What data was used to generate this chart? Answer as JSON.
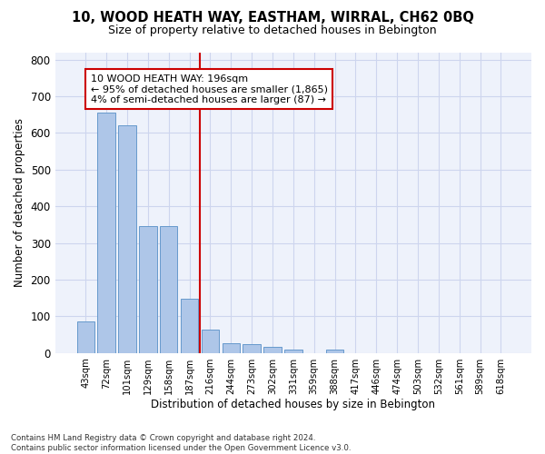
{
  "title": "10, WOOD HEATH WAY, EASTHAM, WIRRAL, CH62 0BQ",
  "subtitle": "Size of property relative to detached houses in Bebington",
  "xlabel": "Distribution of detached houses by size in Bebington",
  "ylabel": "Number of detached properties",
  "bar_labels": [
    "43sqm",
    "72sqm",
    "101sqm",
    "129sqm",
    "158sqm",
    "187sqm",
    "216sqm",
    "244sqm",
    "273sqm",
    "302sqm",
    "331sqm",
    "359sqm",
    "388sqm",
    "417sqm",
    "446sqm",
    "474sqm",
    "503sqm",
    "532sqm",
    "561sqm",
    "589sqm",
    "618sqm"
  ],
  "bar_values": [
    85,
    655,
    620,
    345,
    345,
    147,
    63,
    27,
    23,
    17,
    10,
    0,
    10,
    0,
    0,
    0,
    0,
    0,
    0,
    0,
    0
  ],
  "bar_color": "#aec6e8",
  "bar_edge_color": "#6699cc",
  "vline_color": "#cc0000",
  "annotation_text": "10 WOOD HEATH WAY: 196sqm\n← 95% of detached houses are smaller (1,865)\n4% of semi-detached houses are larger (87) →",
  "annotation_box_color": "#ffffff",
  "annotation_box_edge": "#cc0000",
  "ylim": [
    0,
    820
  ],
  "yticks": [
    0,
    100,
    200,
    300,
    400,
    500,
    600,
    700,
    800
  ],
  "footer_text": "Contains HM Land Registry data © Crown copyright and database right 2024.\nContains public sector information licensed under the Open Government Licence v3.0.",
  "bg_color": "#eef2fb",
  "grid_color": "#cdd5ee"
}
